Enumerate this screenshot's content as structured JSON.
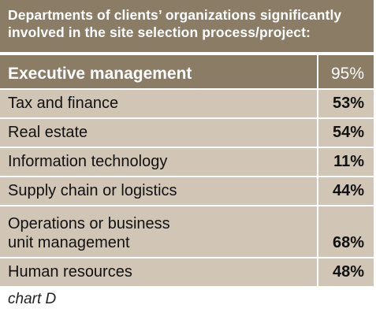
{
  "chart_data": {
    "type": "table",
    "title": "Departments of clients’ organizations significantly involved in the site selection process/project:",
    "title_lines": [
      "Departments of clients’ organizations significantly",
      "involved in the site selection process/project:"
    ],
    "rows": [
      {
        "label": "Executive management",
        "value": "95%"
      },
      {
        "label": "Tax and finance",
        "value": "53%"
      },
      {
        "label": "Real estate",
        "value": "54%"
      },
      {
        "label": "Information technology",
        "value": "11%"
      },
      {
        "label": "Supply chain or logistics",
        "value": "44%"
      },
      {
        "label_lines": [
          "Operations or business",
          "unit management"
        ],
        "label": "Operations or business unit management",
        "value": "68%"
      },
      {
        "label": "Human resources",
        "value": "48%"
      }
    ],
    "caption": "chart D",
    "colors": {
      "header_bg": "#8a7c65",
      "row_bg": "#d1c6b6",
      "header_text": "#ffffff",
      "row_text": "#111111"
    }
  }
}
